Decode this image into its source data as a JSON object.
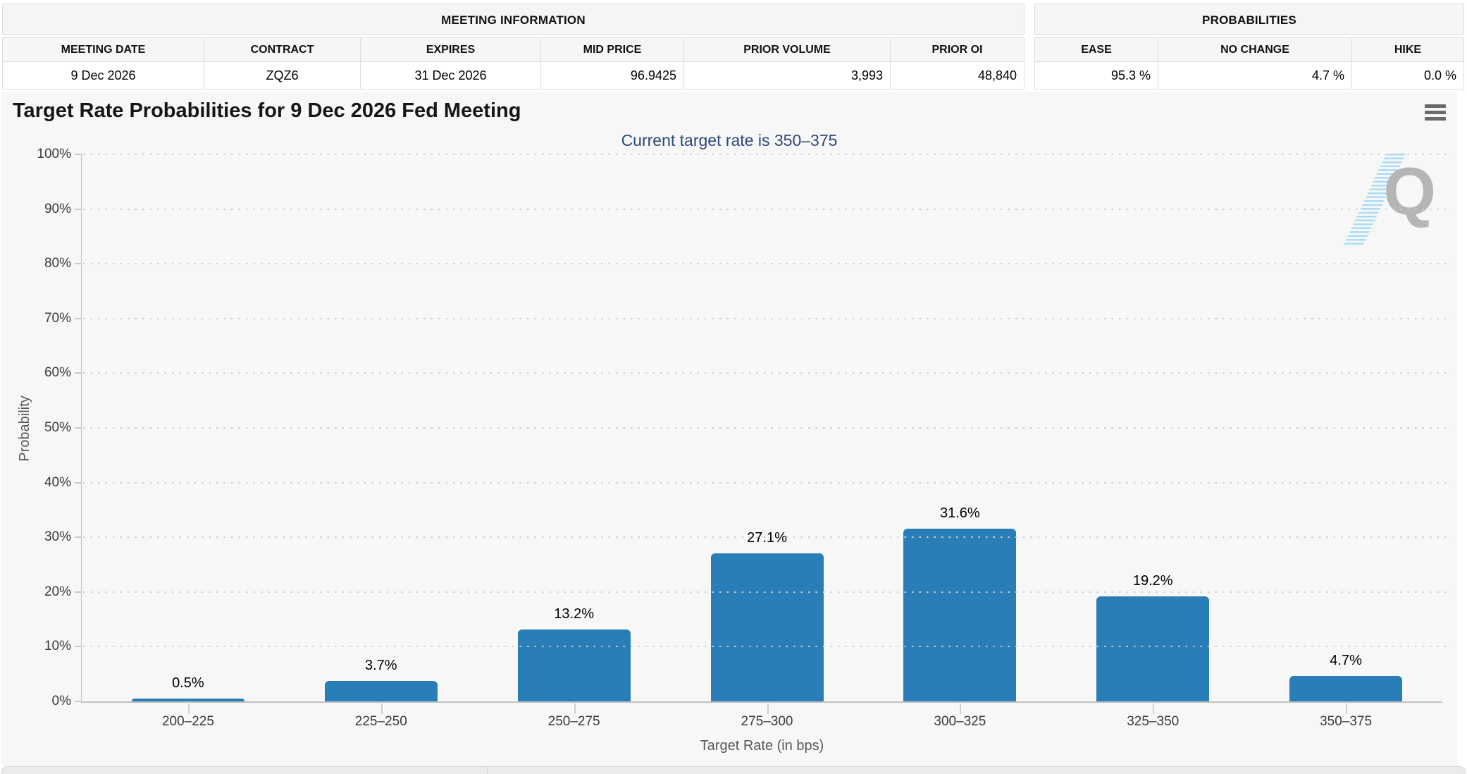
{
  "meeting_information": {
    "title": "MEETING INFORMATION",
    "columns": [
      "MEETING DATE",
      "CONTRACT",
      "EXPIRES",
      "MID PRICE",
      "PRIOR VOLUME",
      "PRIOR OI"
    ],
    "values": [
      "9 Dec 2026",
      "ZQZ6",
      "31 Dec 2026",
      "96.9425",
      "3,993",
      "48,840"
    ]
  },
  "probabilities": {
    "title": "PROBABILITIES",
    "columns": [
      "EASE",
      "NO CHANGE",
      "HIKE"
    ],
    "values": [
      "95.3 %",
      "4.7 %",
      "0.0 %"
    ]
  },
  "chart": {
    "title": "Target Rate Probabilities for 9 Dec 2026 Fed Meeting",
    "subtitle": "Current target rate is 350–375",
    "menu_icon": "hamburger-menu-icon",
    "watermark_letter": "Q"
  },
  "chart_data": {
    "type": "bar",
    "title": "Target Rate Probabilities for 9 Dec 2026 Fed Meeting",
    "subtitle": "Current target rate is 350–375",
    "categories": [
      "200–225",
      "225–250",
      "250–275",
      "275–300",
      "300–325",
      "325–350",
      "350–375"
    ],
    "values": [
      0.5,
      3.7,
      13.2,
      27.1,
      31.6,
      19.2,
      4.7
    ],
    "value_labels": [
      "0.5%",
      "3.7%",
      "13.2%",
      "27.1%",
      "31.6%",
      "19.2%",
      "4.7%"
    ],
    "xlabel": "Target Rate (in bps)",
    "ylabel": "Probability",
    "ylim": [
      0,
      100
    ],
    "y_ticks": [
      0,
      10,
      20,
      30,
      40,
      50,
      60,
      70,
      80,
      90,
      100
    ],
    "y_tick_labels": [
      "0%",
      "10%",
      "20%",
      "30%",
      "40%",
      "50%",
      "60%",
      "70%",
      "80%",
      "90%",
      "100%"
    ],
    "grid": "dotted horizontal gridlines",
    "legend": null,
    "bar_color": "#2a7eb7"
  },
  "colors": {
    "bar_blue": "#2a7eb7",
    "subtitle_navy": "#2b4877",
    "panel_background": "#f7f7f8",
    "table_header_background": "#f5f5f6",
    "axis_gray": "#c2c2c2",
    "watermark_gray": "#b5b5b5",
    "watermark_hatch_blue": "#abdcf5"
  }
}
